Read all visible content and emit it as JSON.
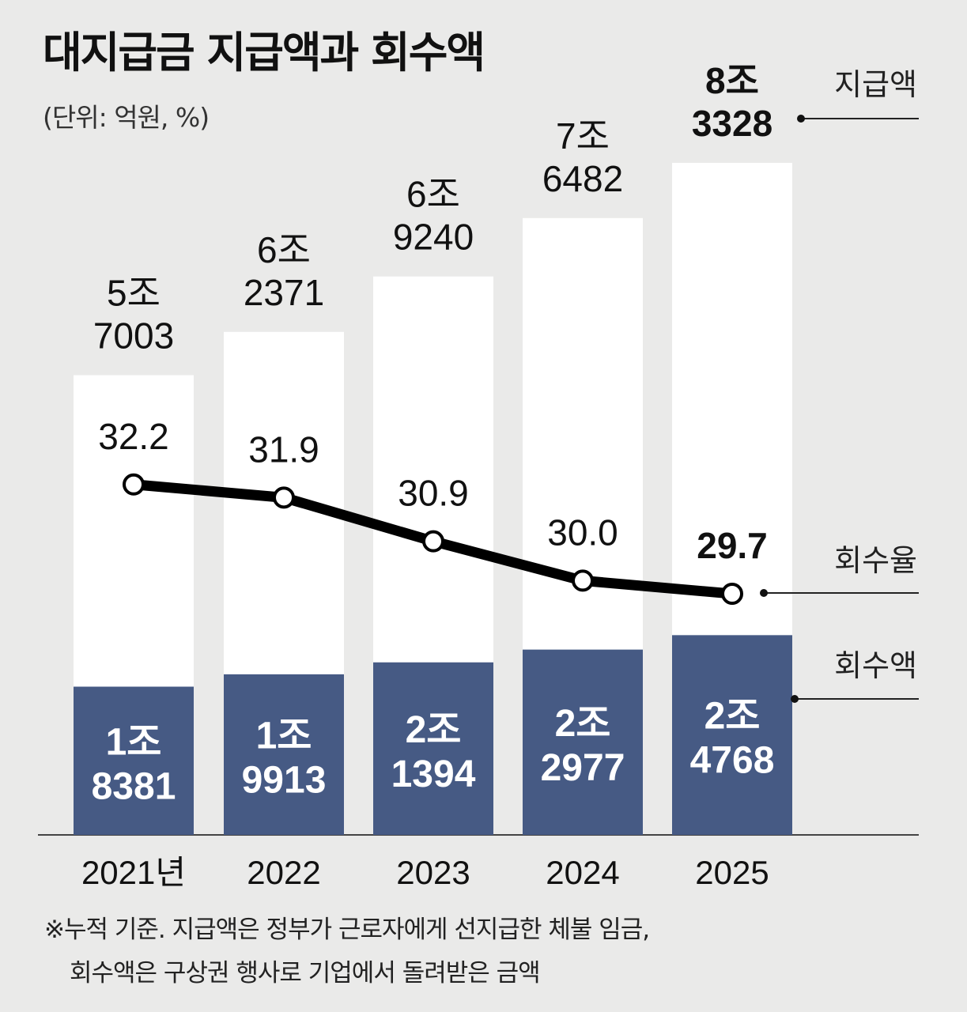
{
  "title": "대지급금 지급액과 회수액",
  "unit": "(단위: 억원, %)",
  "chart_data": {
    "type": "bar",
    "categories": [
      "2021년",
      "2022",
      "2023",
      "2024",
      "2025"
    ],
    "series": [
      {
        "name": "지급액",
        "values": [
          57003,
          62371,
          69240,
          76482,
          83328
        ],
        "labels": [
          [
            "5조",
            "7003"
          ],
          [
            "6조",
            "2371"
          ],
          [
            "6조",
            "9240"
          ],
          [
            "7조",
            "6482"
          ],
          [
            "8조",
            "3328"
          ]
        ]
      },
      {
        "name": "회수액",
        "values": [
          18381,
          19913,
          21394,
          22977,
          24768
        ],
        "labels": [
          [
            "1조",
            "8381"
          ],
          [
            "1조",
            "9913"
          ],
          [
            "2조",
            "1394"
          ],
          [
            "2조",
            "2977"
          ],
          [
            "2조",
            "4768"
          ]
        ]
      },
      {
        "name": "회수율",
        "type": "line",
        "values": [
          32.2,
          31.9,
          30.9,
          30.0,
          29.7
        ],
        "labels": [
          "32.2",
          "31.9",
          "30.9",
          "30.0",
          "29.7"
        ]
      }
    ],
    "legend_placement": "right",
    "grid": false,
    "colors": {
      "payment_bar": "#ffffff",
      "recovery_bar": "#465a84",
      "line": "#000000",
      "background": "#eaeae9"
    }
  },
  "footnote": {
    "line1": "※누적 기준. 지급액은 정부가 근로자에게 선지급한 체불 임금,",
    "line2": "회수액은 구상권 행사로 기업에서 돌려받은 금액"
  }
}
